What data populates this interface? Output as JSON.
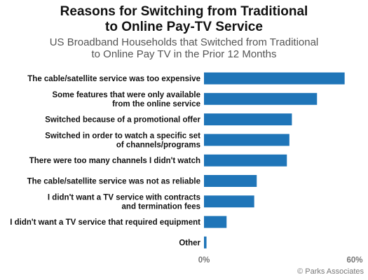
{
  "chart_data": {
    "type": "bar",
    "orientation": "horizontal",
    "title_lines": [
      "Reasons for Switching from Traditional",
      "to Online Pay-TV Service"
    ],
    "subtitle_lines": [
      "US Broadband Households that Switched from Traditional",
      "to Online Pay TV in the Prior 12 Months"
    ],
    "categories": [
      [
        "The cable/satellite service was too expensive"
      ],
      [
        "Some features that were only available",
        "from the online service"
      ],
      [
        "Switched because of a promotional offer"
      ],
      [
        "Switched in order to watch a specific set",
        "of channels/programs"
      ],
      [
        "There were too many channels I didn't watch"
      ],
      [
        "The cable/satellite service was not as reliable"
      ],
      [
        "I didn't want a TV service with contracts",
        "and termination fees"
      ],
      [
        "I didn't want a TV service that required equipment"
      ],
      [
        "Other"
      ]
    ],
    "values": [
      56,
      45,
      35,
      34,
      33,
      21,
      20,
      9,
      1
    ],
    "xlim": [
      0,
      60
    ],
    "ticks": [
      {
        "value": 0,
        "label": "0%"
      },
      {
        "value": 60,
        "label": "60%"
      }
    ],
    "bar_color": "#1f75b8",
    "grid": false,
    "legend": "none"
  },
  "source": "© Parks Associates"
}
